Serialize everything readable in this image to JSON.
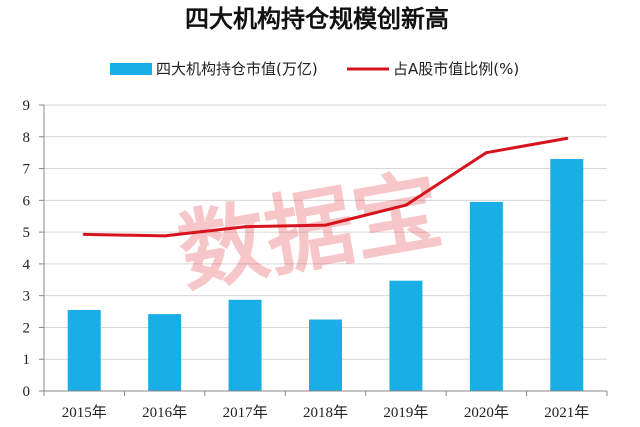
{
  "chart_data": {
    "type": "bar",
    "title": "四大机构持仓规模创新高",
    "categories": [
      "2015年",
      "2016年",
      "2017年",
      "2018年",
      "2019年",
      "2020年",
      "2021年"
    ],
    "series": [
      {
        "name": "四大机构持仓市值(万亿)",
        "type": "bar",
        "color": "#1aaee6",
        "values": [
          2.55,
          2.42,
          2.87,
          2.25,
          3.47,
          5.95,
          7.3
        ]
      },
      {
        "name": "占A股市值比例(%)",
        "type": "line",
        "color": "#d7141e",
        "values": [
          4.93,
          4.88,
          5.17,
          5.22,
          5.85,
          7.5,
          7.95
        ]
      }
    ],
    "ylim": [
      0,
      9
    ],
    "yticks": [
      "0",
      "1",
      "2",
      "3",
      "4",
      "5",
      "6",
      "7",
      "8",
      "9"
    ],
    "grid": true,
    "legend_position": "top",
    "watermark": "数据宝",
    "watermark_color": "#e8454f"
  }
}
